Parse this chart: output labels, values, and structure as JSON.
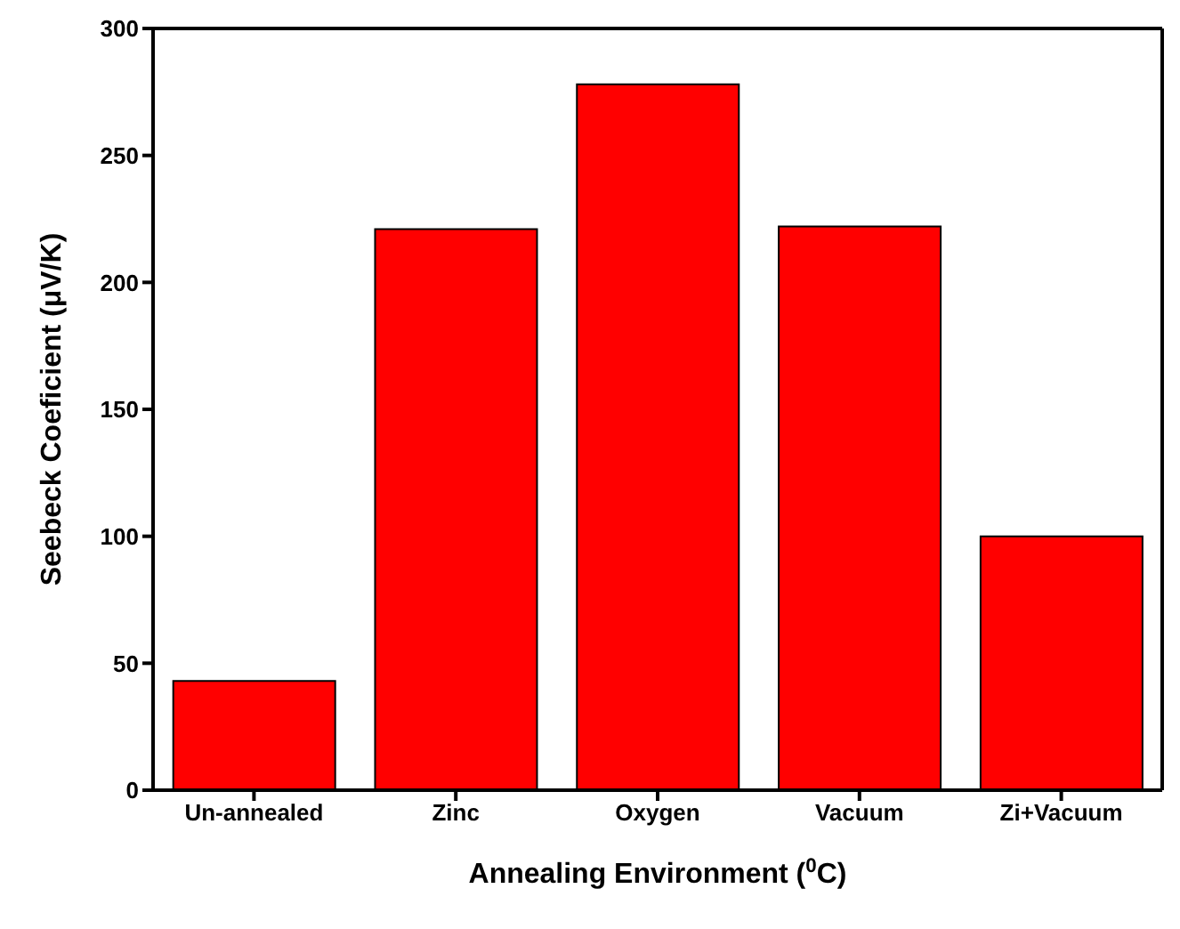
{
  "chart_data": {
    "type": "bar",
    "xlabel": "Annealing Environment ($^{0}$C)",
    "ylabel": "Seebeck Coeficient (μV/K)",
    "categories": [
      "Un-annealed",
      "Zinc",
      "Oxygen",
      "Vacuum",
      "Zi+Vacuum"
    ],
    "values": [
      43,
      221,
      278,
      222,
      100
    ],
    "color": "#ff0000",
    "ylim": [
      0,
      300
    ],
    "yticks": [
      0,
      50,
      100,
      150,
      200,
      250,
      300
    ]
  }
}
